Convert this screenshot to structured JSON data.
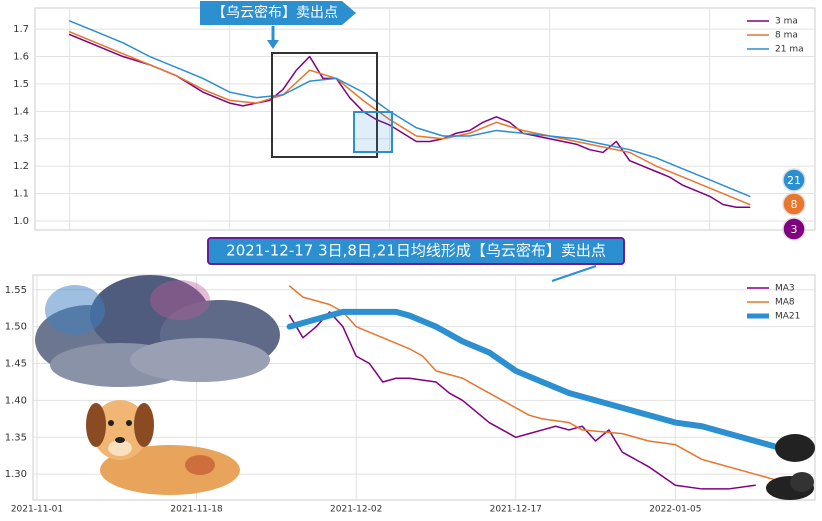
{
  "chart_data": [
    {
      "type": "line",
      "xlim": [
        -2.6,
        55.9
      ],
      "xticks": [
        0,
        12,
        24,
        36,
        48
      ],
      "ylim": [
        0.967,
        1.777
      ],
      "yticks": [
        {
          "value": 1.0,
          "label": "1.0"
        },
        1.1,
        1.2,
        1.3,
        1.4,
        1.5,
        1.6,
        1.7
      ],
      "grid": true,
      "legend": "upper right",
      "series": [
        {
          "name": "3 ma",
          "color": "#800080",
          "width": 1.5,
          "x": [
            0,
            1,
            2,
            4,
            6,
            8,
            10,
            12,
            13,
            14,
            15,
            16,
            17,
            18,
            19,
            20,
            21,
            22,
            23,
            24,
            25,
            26,
            27,
            28,
            29,
            30,
            31,
            32,
            33,
            34,
            35,
            36,
            37,
            38,
            39,
            40,
            41,
            42,
            43,
            44,
            45,
            46,
            47,
            48,
            49,
            50,
            51
          ],
          "values": [
            1.68,
            1.66,
            1.64,
            1.6,
            1.57,
            1.53,
            1.47,
            1.43,
            1.42,
            1.43,
            1.44,
            1.48,
            1.55,
            1.6,
            1.52,
            1.52,
            1.45,
            1.4,
            1.37,
            1.35,
            1.32,
            1.29,
            1.29,
            1.3,
            1.32,
            1.33,
            1.36,
            1.38,
            1.36,
            1.32,
            1.31,
            1.3,
            1.29,
            1.28,
            1.26,
            1.25,
            1.29,
            1.22,
            1.2,
            1.18,
            1.16,
            1.13,
            1.11,
            1.09,
            1.06,
            1.05,
            1.05
          ]
        },
        {
          "name": "8 ma",
          "color": "#e8762d",
          "width": 1.5,
          "x": [
            0,
            2,
            4,
            6,
            8,
            10,
            12,
            14,
            16,
            18,
            20,
            22,
            24,
            26,
            28,
            30,
            32,
            34,
            36,
            38,
            40,
            42,
            44,
            46,
            48,
            50,
            51
          ],
          "values": [
            1.69,
            1.65,
            1.61,
            1.57,
            1.53,
            1.48,
            1.44,
            1.43,
            1.46,
            1.55,
            1.52,
            1.44,
            1.37,
            1.31,
            1.3,
            1.32,
            1.36,
            1.33,
            1.31,
            1.29,
            1.27,
            1.25,
            1.2,
            1.16,
            1.12,
            1.08,
            1.06
          ]
        },
        {
          "name": "21 ma",
          "color": "#2b8fd0",
          "width": 1.5,
          "x": [
            0,
            2,
            4,
            6,
            8,
            10,
            12,
            14,
            16,
            18,
            20,
            22,
            24,
            26,
            28,
            30,
            32,
            34,
            36,
            38,
            40,
            42,
            44,
            46,
            48,
            50,
            51
          ],
          "values": [
            1.73,
            1.69,
            1.65,
            1.6,
            1.56,
            1.52,
            1.47,
            1.45,
            1.46,
            1.51,
            1.52,
            1.47,
            1.4,
            1.34,
            1.31,
            1.31,
            1.33,
            1.32,
            1.31,
            1.3,
            1.28,
            1.26,
            1.23,
            1.19,
            1.15,
            1.11,
            1.09
          ]
        }
      ],
      "annotations": [
        "【乌云密布】卖出点",
        "2021-12-17 3日,8日,21日均线形成【乌云密布】卖出点",
        "21",
        "8",
        "3"
      ]
    },
    {
      "type": "line",
      "xlim": [
        -0.3,
        58.5
      ],
      "xticks": [
        {
          "value": 0,
          "label": "2021-11-01"
        },
        {
          "value": 12,
          "label": "2021-11-18"
        },
        {
          "value": 24,
          "label": "2021-12-02"
        },
        {
          "value": 36,
          "label": "2021-12-17"
        },
        {
          "value": 48,
          "label": "2022-01-05"
        }
      ],
      "ylim": [
        1.265,
        1.57
      ],
      "yticks": [
        {
          "value": 1.3,
          "label": "1.30"
        },
        {
          "value": 1.35,
          "label": "1.35"
        },
        {
          "value": 1.4,
          "label": "1.40"
        },
        {
          "value": 1.45,
          "label": "1.45"
        },
        {
          "value": 1.5,
          "label": "1.50"
        },
        {
          "value": 1.55,
          "label": "1.55"
        }
      ],
      "grid": true,
      "legend": "upper right",
      "series": [
        {
          "name": "MA3",
          "color": "#800080",
          "width": 1.5,
          "x": [
            19,
            20,
            21,
            22,
            23,
            24,
            25,
            26,
            27,
            28,
            30,
            31,
            32,
            34,
            36,
            37,
            38,
            39,
            40,
            41,
            42,
            43,
            44,
            46,
            48,
            50,
            52,
            54
          ],
          "values": [
            1.515,
            1.485,
            1.5,
            1.52,
            1.5,
            1.46,
            1.45,
            1.425,
            1.43,
            1.43,
            1.425,
            1.41,
            1.4,
            1.37,
            1.35,
            1.355,
            1.36,
            1.365,
            1.36,
            1.365,
            1.345,
            1.36,
            1.33,
            1.31,
            1.285,
            1.28,
            1.28,
            1.285
          ]
        },
        {
          "name": "MA8",
          "color": "#e8762d",
          "width": 1.5,
          "x": [
            19,
            20,
            22,
            23,
            24,
            26,
            28,
            29,
            30,
            32,
            34,
            35,
            37,
            38,
            40,
            41,
            44,
            46,
            48,
            50,
            51,
            54,
            56
          ],
          "values": [
            1.555,
            1.54,
            1.53,
            1.52,
            1.5,
            1.485,
            1.47,
            1.46,
            1.44,
            1.43,
            1.41,
            1.4,
            1.38,
            1.375,
            1.37,
            1.36,
            1.355,
            1.345,
            1.34,
            1.32,
            1.315,
            1.3,
            1.29
          ]
        },
        {
          "name": "MA21",
          "color": "#2b8fd0",
          "width": 6,
          "x": [
            19,
            21,
            23,
            25,
            27,
            28,
            30,
            32,
            34,
            36,
            38,
            40,
            42,
            44,
            46,
            48,
            50,
            52,
            54,
            56
          ],
          "values": [
            1.5,
            1.51,
            1.52,
            1.52,
            1.52,
            1.515,
            1.5,
            1.48,
            1.465,
            1.44,
            1.425,
            1.41,
            1.4,
            1.39,
            1.38,
            1.37,
            1.365,
            1.355,
            1.345,
            1.335
          ]
        }
      ]
    }
  ]
}
